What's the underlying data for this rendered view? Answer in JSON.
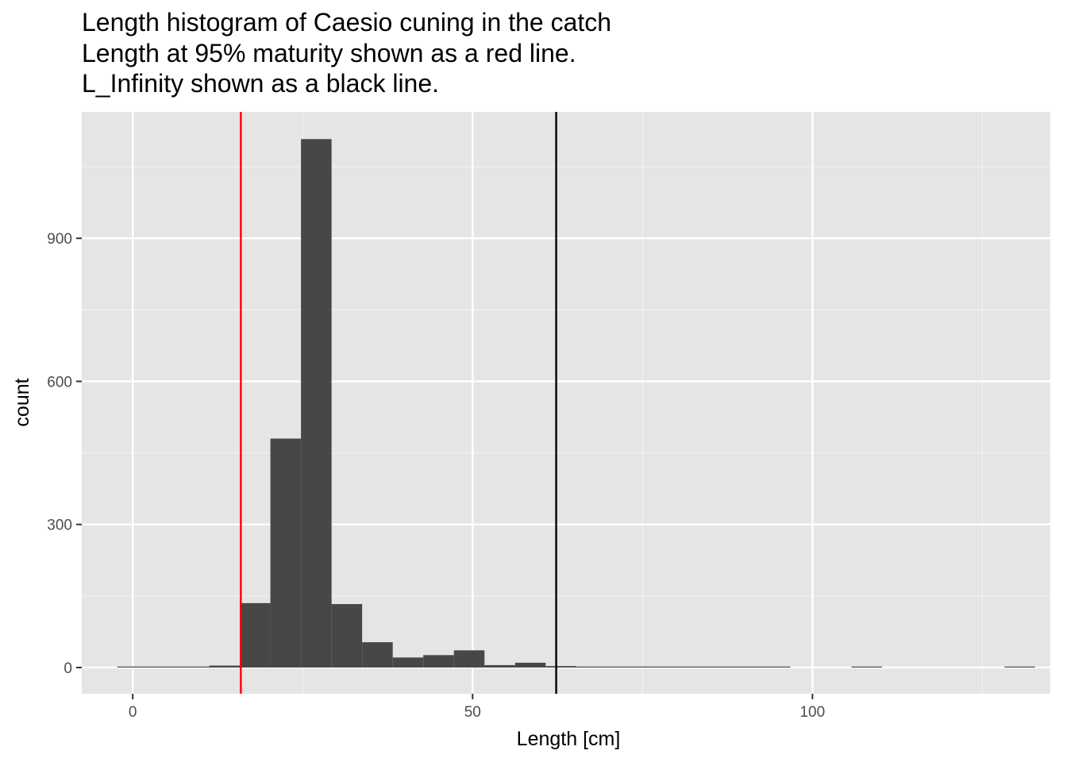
{
  "chart_data": {
    "type": "bar",
    "title_lines": [
      "Length histogram of Caesio cuning in the catch",
      "Length at 95% maturity shown as a red line.",
      "L_Infinity shown as a black line."
    ],
    "xlabel": "Length [cm]",
    "ylabel": "count",
    "xlim": [
      -7.5,
      135
    ],
    "ylim": [
      -55,
      1165
    ],
    "x_ticks": [
      0,
      50,
      100
    ],
    "y_ticks": [
      0,
      300,
      600,
      900
    ],
    "grid": true,
    "bin_width": 4.5,
    "bins": [
      {
        "start": -2.25,
        "count": 1
      },
      {
        "start": 2.25,
        "count": 2
      },
      {
        "start": 6.75,
        "count": 0
      },
      {
        "start": 11.25,
        "count": 4
      },
      {
        "start": 15.75,
        "count": 135
      },
      {
        "start": 20.25,
        "count": 480
      },
      {
        "start": 24.75,
        "count": 1108
      },
      {
        "start": 29.25,
        "count": 133
      },
      {
        "start": 33.75,
        "count": 53
      },
      {
        "start": 38.25,
        "count": 21
      },
      {
        "start": 42.75,
        "count": 26
      },
      {
        "start": 47.25,
        "count": 36
      },
      {
        "start": 51.75,
        "count": 5
      },
      {
        "start": 56.25,
        "count": 10
      },
      {
        "start": 60.75,
        "count": 3
      },
      {
        "start": 65.25,
        "count": 2
      },
      {
        "start": 69.75,
        "count": 1
      },
      {
        "start": 74.25,
        "count": 2
      },
      {
        "start": 78.75,
        "count": 1
      },
      {
        "start": 83.25,
        "count": 1
      },
      {
        "start": 87.75,
        "count": 1
      },
      {
        "start": 92.25,
        "count": 1
      },
      {
        "start": 105.75,
        "count": 1
      },
      {
        "start": 128.25,
        "count": 1
      }
    ],
    "reference_lines": [
      {
        "name": "Length at 95% maturity",
        "x": 15.9,
        "color": "#ff0000"
      },
      {
        "name": "L_Infinity",
        "x": 62.3,
        "color": "#000000"
      }
    ],
    "colors": {
      "bar": "#474747",
      "panel": "#e5e5e5",
      "grid_major": "#ffffff",
      "grid_minor": "#f2f2f2"
    }
  }
}
